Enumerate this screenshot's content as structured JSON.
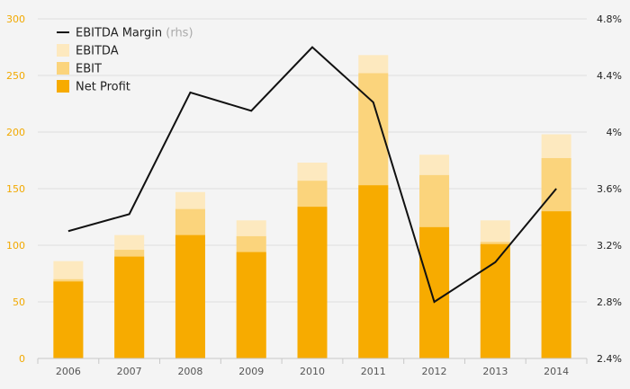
{
  "chart_data": {
    "type": "bar",
    "categories": [
      "2006",
      "2007",
      "2008",
      "2009",
      "2010",
      "2011",
      "2012",
      "2013",
      "2014"
    ],
    "series": [
      {
        "name": "Net Profit",
        "values": [
          68,
          90,
          109,
          94,
          134,
          153,
          116,
          101,
          130
        ],
        "color": "#f7ab00"
      },
      {
        "name": "EBIT",
        "values": [
          70,
          96,
          132,
          108,
          157,
          252,
          162,
          103,
          177
        ],
        "color": "#fbd47c"
      },
      {
        "name": "EBITDA",
        "values": [
          86,
          109,
          147,
          122,
          173,
          268,
          180,
          122,
          198
        ],
        "color": "#fde9bf"
      },
      {
        "name": "EBITDA Margin",
        "suffix": "(rhs)",
        "type": "line",
        "axis": "right",
        "values": [
          3.3,
          3.42,
          4.28,
          4.15,
          4.6,
          4.21,
          2.8,
          3.08,
          3.6
        ],
        "color": "#111111"
      }
    ],
    "left_axis": {
      "ylim": [
        0,
        300
      ],
      "ticks": [
        "0",
        "50",
        "100",
        "150",
        "200",
        "250",
        "300"
      ]
    },
    "right_axis": {
      "ylim": [
        2.4,
        4.8
      ],
      "ticks": [
        "2.4%",
        "2.8%",
        "3.2%",
        "3.6%",
        "4%",
        "4.4%",
        "4.8%"
      ]
    },
    "legend": {
      "position": "top-left",
      "items": [
        {
          "label": "EBITDA Margin",
          "suffix": "(rhs)",
          "kind": "line",
          "color": "#111111"
        },
        {
          "label": "EBITDA",
          "kind": "box",
          "color": "#fde9bf"
        },
        {
          "label": "EBIT",
          "kind": "box",
          "color": "#fbd47c"
        },
        {
          "label": "Net Profit",
          "kind": "box",
          "color": "#f7ab00"
        }
      ]
    },
    "grid": true
  }
}
